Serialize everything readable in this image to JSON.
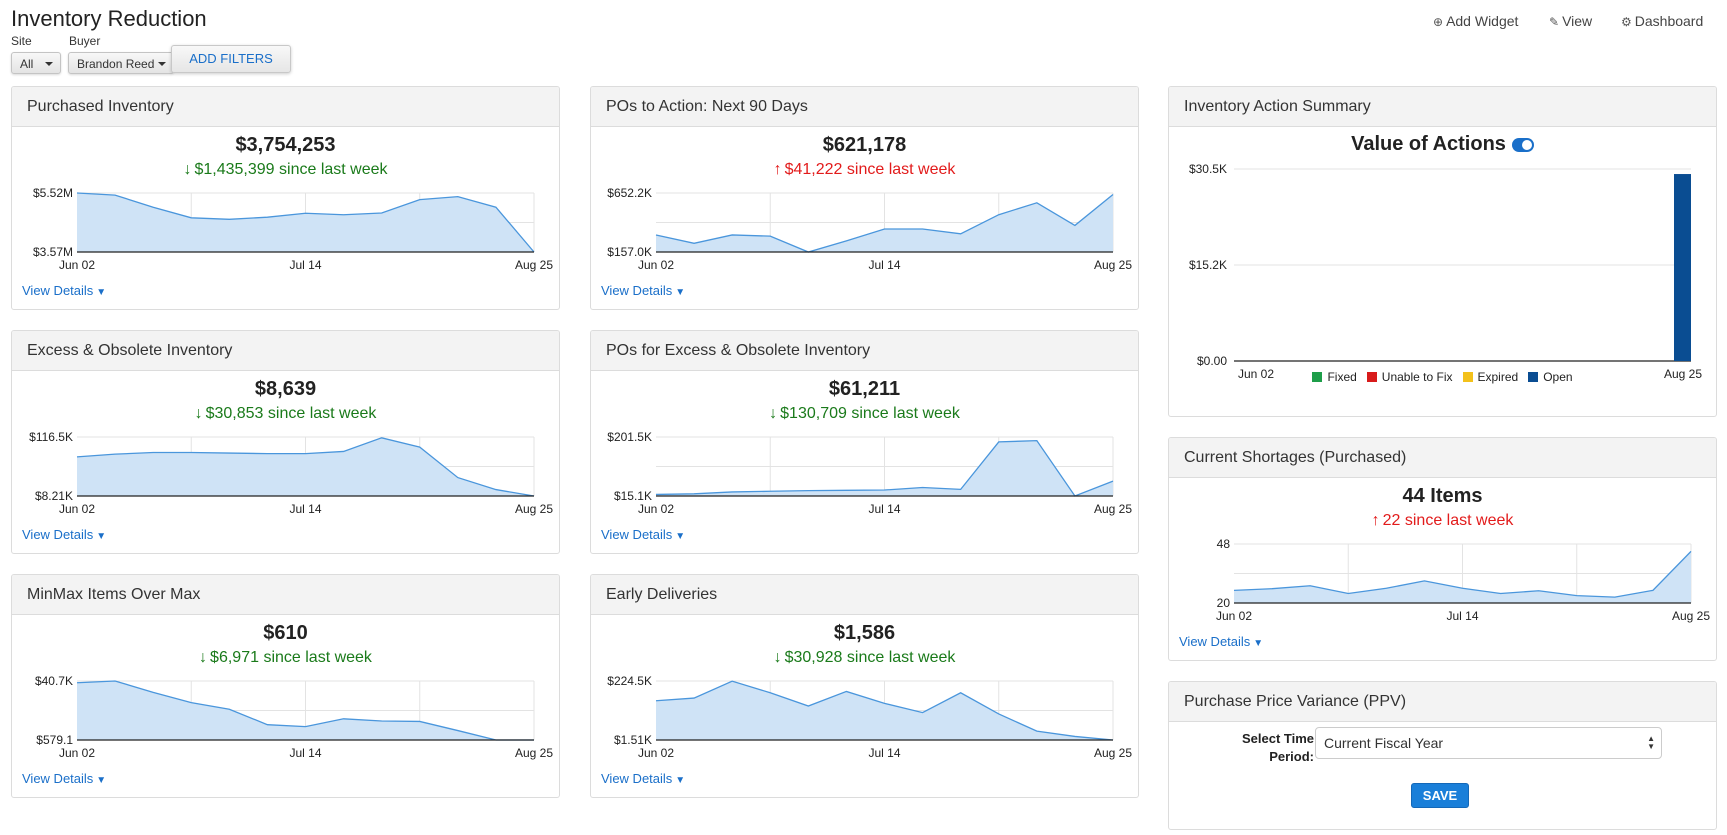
{
  "page": {
    "title": "Inventory Reduction"
  },
  "filters": {
    "site_label": "Site",
    "site_value": "All",
    "buyer_label": "Buyer",
    "buyer_value": "Brandon Reed",
    "add_filters_label": "ADD FILTERS"
  },
  "toolbar": {
    "add_widget_label": "Add Widget",
    "view_label": "View",
    "dashboard_label": "Dashboard"
  },
  "widgets": [
    {
      "title": "Purchased Inventory",
      "value": "$3,754,253",
      "change": "$1,435,399",
      "change_suffix": "since last week",
      "direction": "down",
      "y_max_label": "$5.52M",
      "y_min_label": "$3.57M",
      "x_labels": [
        "Jun 02",
        "Jul 14",
        "Aug 25"
      ],
      "view_details": "View Details",
      "series": [
        5.52,
        5.45,
        5.05,
        4.7,
        4.65,
        4.72,
        4.85,
        4.8,
        4.86,
        5.3,
        5.4,
        5.05,
        3.57
      ],
      "ymin": 3.57,
      "ymax": 5.52
    },
    {
      "title": "POs to Action: Next 90 Days",
      "value": "$621,178",
      "change": "$41,222",
      "change_suffix": "since last week",
      "direction": "up",
      "y_max_label": "$652.2K",
      "y_min_label": "$157.0K",
      "x_labels": [
        "Jun 02",
        "Jul 14",
        "Aug 25"
      ],
      "view_details": "View Details",
      "series": [
        300,
        230,
        300,
        290,
        157,
        250,
        350,
        350,
        310,
        470,
        570,
        380,
        640
      ],
      "ymin": 157.0,
      "ymax": 652.2
    },
    {
      "title": "Excess & Obsolete Inventory",
      "value": "$8,639",
      "change": "$30,853",
      "change_suffix": "since last week",
      "direction": "down",
      "y_max_label": "$116.5K",
      "y_min_label": "$8.21K",
      "x_labels": [
        "Jun 02",
        "Jul 14",
        "Aug 25"
      ],
      "view_details": "View Details",
      "series": [
        80,
        85,
        88,
        88,
        87,
        86,
        86,
        90,
        115,
        98,
        42,
        20,
        8.21
      ],
      "ymin": 8.21,
      "ymax": 116.5
    },
    {
      "title": "POs for Excess & Obsolete Inventory",
      "value": "$61,211",
      "change": "$130,709",
      "change_suffix": "since last week",
      "direction": "down",
      "y_max_label": "$201.5K",
      "y_min_label": "$15.1K",
      "x_labels": [
        "Jun 02",
        "Jul 14",
        "Aug 25"
      ],
      "view_details": "View Details",
      "series": [
        20,
        22,
        28,
        30,
        32,
        33,
        34,
        42,
        36,
        186,
        190,
        15.1,
        62
      ],
      "ymin": 15.1,
      "ymax": 201.5
    },
    {
      "title": "MinMax Items Over Max",
      "value": "$610",
      "change": "$6,971",
      "change_suffix": "since last week",
      "direction": "down",
      "y_max_label": "$40.7K",
      "y_min_label": "$579.1",
      "x_labels": [
        "Jun 02",
        "Jul 14",
        "Aug 25"
      ],
      "view_details": "View Details",
      "series": [
        39.5,
        40.7,
        33,
        26,
        21.5,
        11,
        9.7,
        15,
        13.5,
        13.2,
        7,
        0.579,
        0.579
      ],
      "ymin": 0.579,
      "ymax": 40.7
    },
    {
      "title": "Early Deliveries",
      "value": "$1,586",
      "change": "$30,928",
      "change_suffix": "since last week",
      "direction": "down",
      "y_max_label": "$224.5K",
      "y_min_label": "$1.51K",
      "x_labels": [
        "Jun 02",
        "Jul 14",
        "Aug 25"
      ],
      "view_details": "View Details",
      "series": [
        150,
        160,
        224,
        180,
        130,
        185,
        140,
        105,
        180,
        100,
        35,
        15,
        1.51
      ],
      "ymin": 1.51,
      "ymax": 224.5
    },
    {
      "title": "Current Shortages (Purchased)",
      "value": "44 Items",
      "change": "22",
      "change_suffix": "since last week",
      "direction": "up",
      "y_max_label": "48",
      "y_min_label": "20",
      "x_labels": [
        "Jun 02",
        "Jul 14",
        "Aug 25"
      ],
      "view_details": "View Details",
      "series": [
        26,
        26.8,
        28.2,
        24.5,
        27,
        30.5,
        27,
        24.5,
        25.8,
        23.5,
        22.8,
        26,
        44.5
      ],
      "ymin": 20,
      "ymax": 48
    }
  ],
  "summary": {
    "title": "Inventory Action Summary",
    "chart_title": "Value of Actions",
    "legend": [
      {
        "name": "Fixed",
        "color": "#1e9e4a"
      },
      {
        "name": "Unable to Fix",
        "color": "#d81b1b"
      },
      {
        "name": "Expired",
        "color": "#f3c11b"
      },
      {
        "name": "Open",
        "color": "#0a4d92"
      }
    ]
  },
  "chart_data": {
    "type": "bar",
    "title": "Value of Actions",
    "y_tick_labels": [
      "$30.5K",
      "$15.2K",
      "$0.00"
    ],
    "x_tick_labels": [
      "Jun 02",
      "Aug 25"
    ],
    "ylim": [
      0,
      30500
    ],
    "series": [
      {
        "name": "Open",
        "values": [
          {
            "x": "Aug 25",
            "y": 29700
          }
        ]
      }
    ],
    "legend_position": "bottom"
  },
  "ppv": {
    "title": "Purchase Price Variance (PPV)",
    "label": "Select Time Period:",
    "selected": "Current Fiscal Year",
    "save_label": "SAVE"
  }
}
